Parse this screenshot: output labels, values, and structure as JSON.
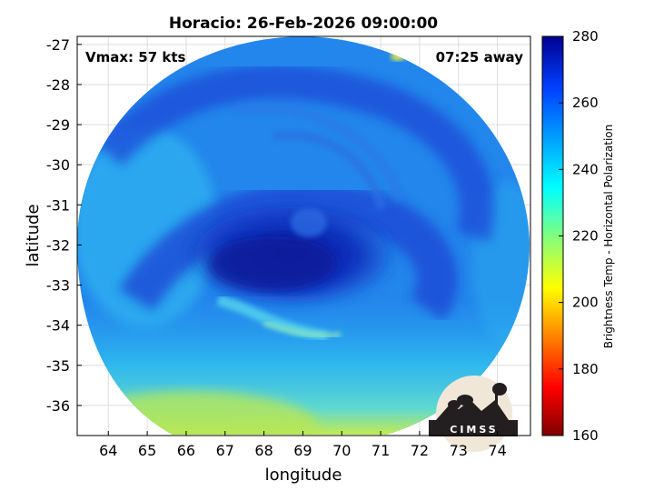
{
  "title": "Horacio: 26-Feb-2026 09:00:00",
  "vmax_text": "Vmax: 57 kts",
  "time_away_text": "07:25 away",
  "xlabel": "longitude",
  "ylabel": "latitude",
  "x_ticks": [
    "64",
    "65",
    "66",
    "67",
    "68",
    "69",
    "70",
    "71",
    "72",
    "73",
    "74"
  ],
  "y_ticks": [
    "-27",
    "-28",
    "-29",
    "-30",
    "-31",
    "-32",
    "-33",
    "-34",
    "-35",
    "-36"
  ],
  "colorbar": {
    "label": "Brightness Temp - Horizontal Polarization",
    "ticks": [
      "280",
      "260",
      "240",
      "220",
      "200",
      "180",
      "160"
    ],
    "min": 160,
    "max": 280
  },
  "logo_text": "CIMSS",
  "colors": {
    "cold_core": "#0a1aa8",
    "band_blue": "#1f5ae6",
    "outer_cyan": "#2fb4f0",
    "warm_yellow": "#c9ee4a"
  }
}
